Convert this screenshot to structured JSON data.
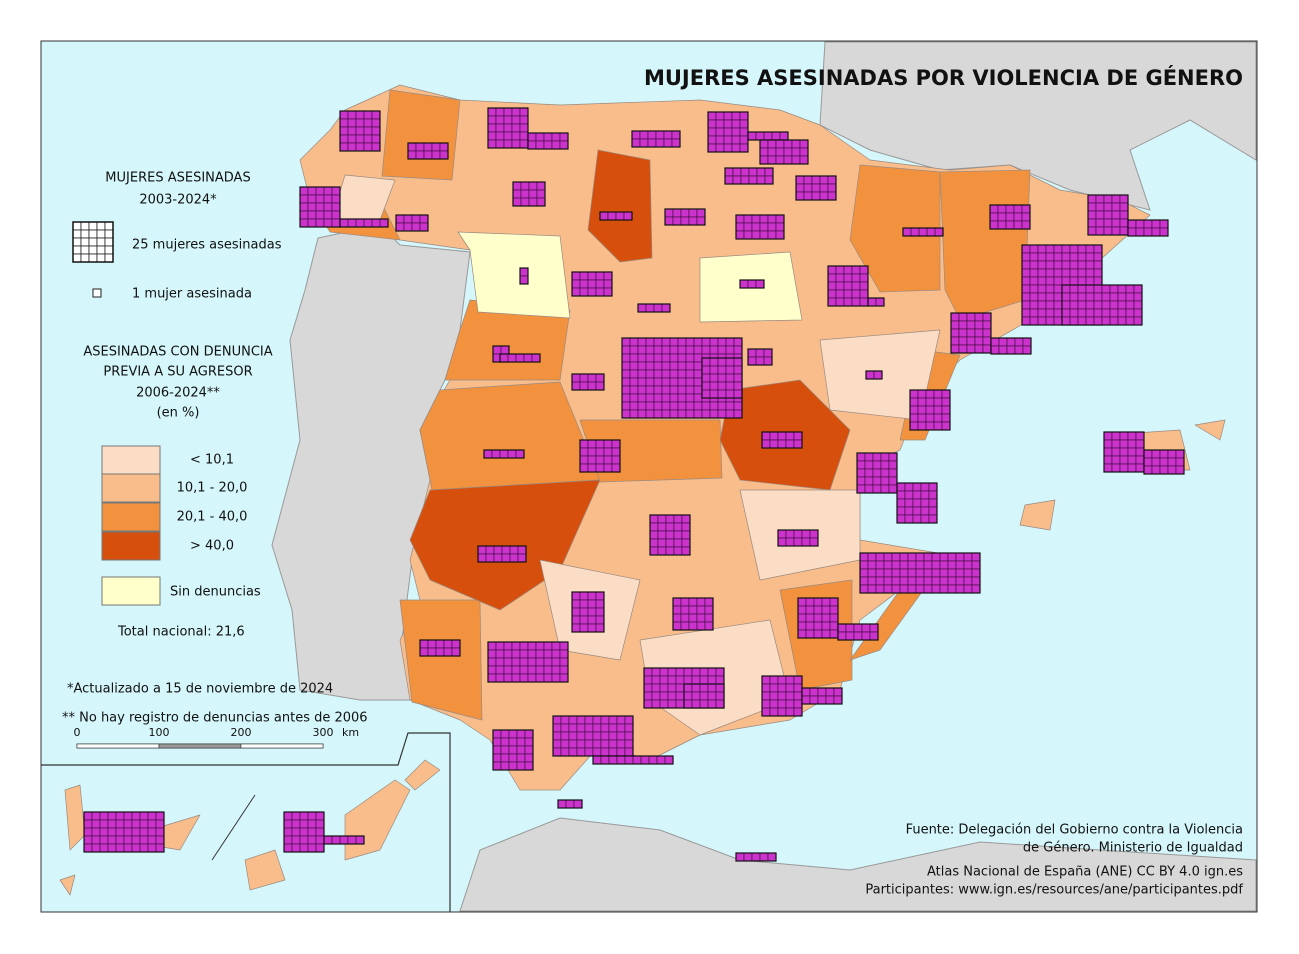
{
  "title": "MUJERES ASESINADAS POR VIOLENCIA DE GÉNERO",
  "legend": {
    "count_title": [
      "MUJERES ASESINADAS",
      "2003-2024*"
    ],
    "count_items": [
      "25 mujeres asesinadas",
      "1 mujer asesinada"
    ],
    "share_title": [
      "ASESINADAS CON DENUNCIA",
      "PREVIA A SU AGRESOR",
      "2006-2024**",
      "(en %)"
    ],
    "classes": [
      {
        "label": "< 10,1",
        "color": "#fbdcc4"
      },
      {
        "label": "10,1 - 20,0",
        "color": "#f8bd8b"
      },
      {
        "label": "20,1 - 40,0",
        "color": "#f2923e"
      },
      {
        "label": "> 40,0",
        "color": "#d64f0d"
      },
      {
        "label": "Sin denuncias",
        "color": "#ffffcc"
      }
    ],
    "total": "Total nacional: 21,6"
  },
  "notes": [
    "*Actualizado a 15 de noviembre de 2024",
    "** No hay registro de denuncias antes de 2006"
  ],
  "scale": {
    "ticks": [
      0,
      100,
      200,
      300
    ],
    "unit": "km"
  },
  "source": [
    "Fuente: Delegación del Gobierno contra la Violencia",
    "de Género. Ministerio de Igualdad",
    "Atlas Nacional de España (ANE) CC BY 4.0 ign.es",
    "Participantes: www.ign.es/resources/ane/participantes.pdf"
  ]
}
